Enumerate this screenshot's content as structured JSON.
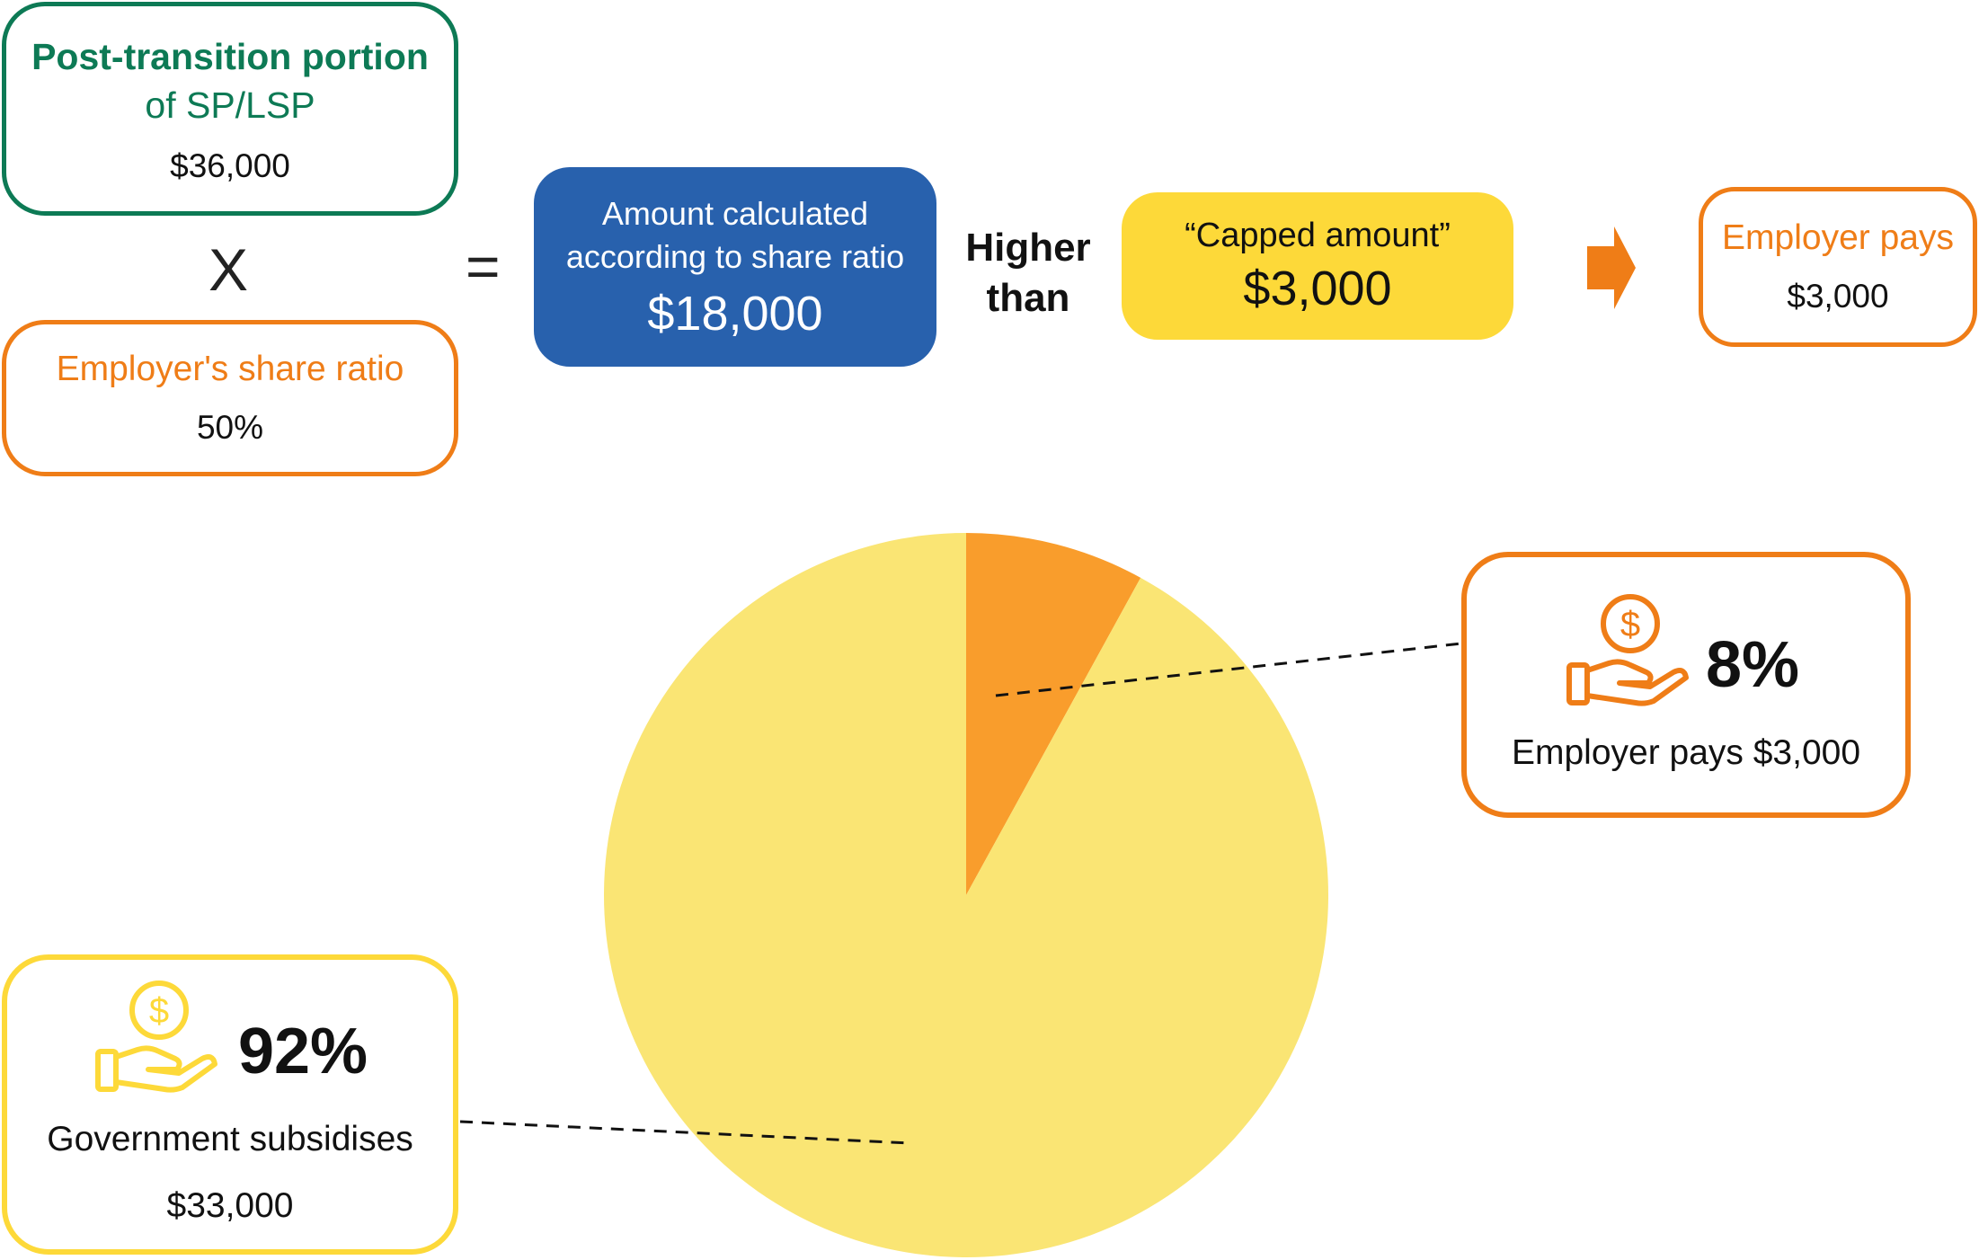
{
  "colors": {
    "green": "#0d7a55",
    "orange": "#ef7d17",
    "blue": "#2861ad",
    "yellow_box": "#fdd939",
    "pie_employer": "#f99d2c",
    "pie_government": "#fae574"
  },
  "formula": {
    "post_transition_title": "Post-transition portion",
    "post_transition_sub": "of SP/LSP",
    "post_transition_value": "$36,000",
    "multiply_symbol": "X",
    "share_ratio_label": "Employer's share ratio",
    "share_ratio_value": "50%",
    "equals_symbol": "=",
    "calculated_label_line1": "Amount calculated",
    "calculated_label_line2": "according to share ratio",
    "calculated_value": "$18,000",
    "higher_than_line1": "Higher",
    "higher_than_line2": "than",
    "capped_label": "“Capped amount”",
    "capped_value": "$3,000",
    "arrow_icon": "arrow-right-icon",
    "employer_pays_label": "Employer pays",
    "employer_pays_value": "$3,000"
  },
  "chart_data": {
    "type": "pie",
    "slices": [
      {
        "label": "Employer pays $3,000",
        "value": 8,
        "color": "#f99d2c"
      },
      {
        "label": "Government subsidises $33,000",
        "value": 92,
        "color": "#fae574"
      }
    ]
  },
  "callouts": {
    "employer": {
      "icon": "hand-with-coin-icon",
      "percent": "8%",
      "caption": "Employer pays $3,000"
    },
    "government": {
      "icon": "hand-with-coin-icon",
      "percent": "92%",
      "caption_line1": "Government subsidises",
      "caption_line2": "$33,000"
    }
  }
}
